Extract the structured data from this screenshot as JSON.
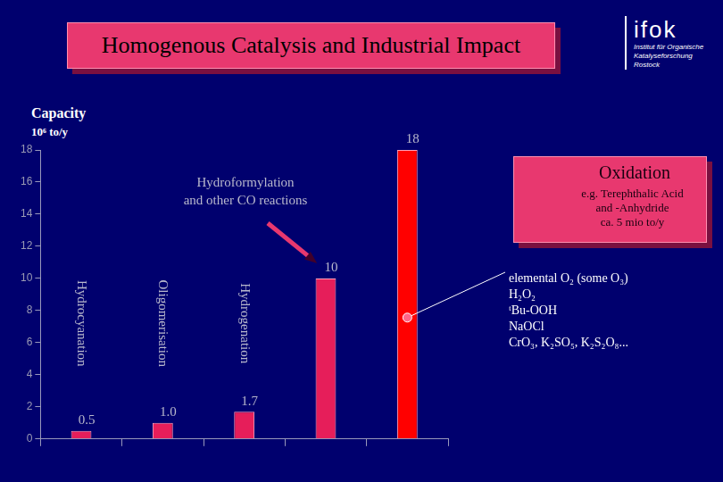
{
  "chart_data": {
    "type": "bar",
    "title": "Homogenous Catalysis and Industrial Impact",
    "ylabel": [
      "Capacity",
      "10⁶ to/y"
    ],
    "categories": [
      "Hydrocyanation",
      "Oligomerisation",
      "Hydrogenation",
      [
        "Hydroformylation",
        "and other CO reactions"
      ],
      "Oxidation"
    ],
    "values": [
      0.5,
      1.0,
      1.7,
      10,
      18
    ],
    "value_labels": [
      "0.5",
      "1.0",
      "1.7",
      "10",
      "18"
    ],
    "data_labels": true,
    "colors": [
      "#e61e5a",
      "#e61e5a",
      "#e61e5a",
      "#e61e5a",
      "#ff0000"
    ],
    "ylim": [
      0,
      18
    ],
    "yticks": [
      0,
      2,
      4,
      6,
      8,
      10,
      12,
      14,
      16,
      18
    ],
    "grid": false,
    "tick_labels": "y",
    "annotations": {
      "oxidation_note": [
        "e.g. Terephthalic Acid",
        "and -Anhydride",
        "ca. 5 mio to/y"
      ],
      "oxidants": [
        "elemental O₂ (some O₃)",
        "H₂O₂",
        "ᵗBu-OOH",
        "NaOCl",
        "CrO₃, K₂SO₅, K₂S₂O₈..."
      ]
    }
  },
  "logo": {
    "name": "ifok",
    "text": [
      "Institut für Organische",
      "Katalyseforschung",
      "Rostock"
    ]
  }
}
